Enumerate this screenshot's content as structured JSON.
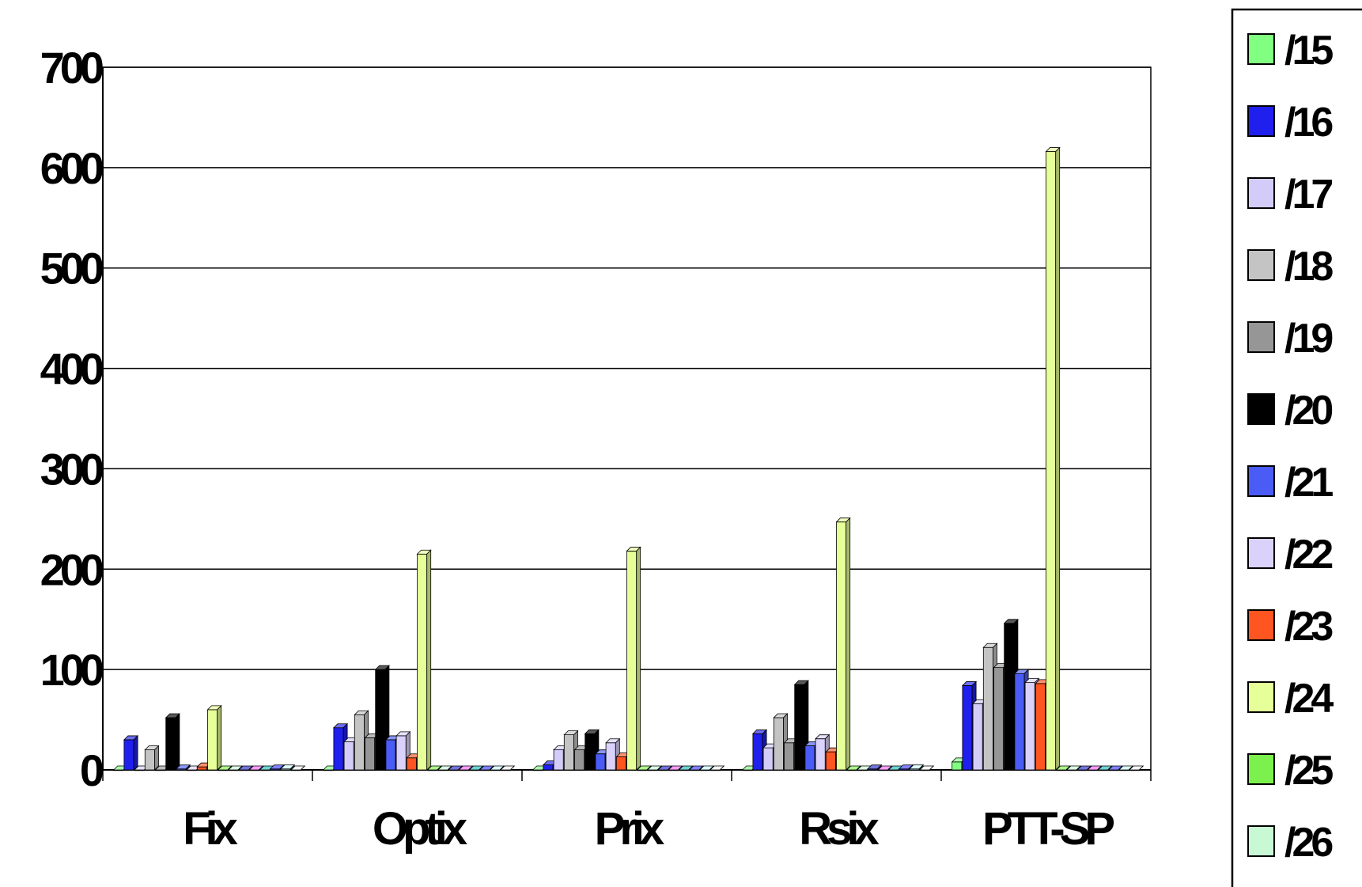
{
  "chart_data": {
    "type": "bar",
    "title": "",
    "xlabel": "",
    "ylabel": "",
    "ylim": [
      0,
      700
    ],
    "yticks": [
      "0",
      "100",
      "200",
      "300",
      "400",
      "500",
      "600",
      "700"
    ],
    "grid": true,
    "legend_position": "right",
    "categories": [
      "Fix",
      "Optix",
      "Prix",
      "Rsix",
      "PTT-SP"
    ],
    "series": [
      {
        "name": "/15",
        "color": "#80ff80",
        "values": [
          0,
          0,
          0,
          0,
          8
        ]
      },
      {
        "name": "/16",
        "color": "#2020ee",
        "values": [
          30,
          42,
          5,
          36,
          84
        ]
      },
      {
        "name": "/17",
        "color": "#d4ccf8",
        "values": [
          0,
          28,
          20,
          22,
          66
        ]
      },
      {
        "name": "/18",
        "color": "#c4c4c4",
        "values": [
          20,
          55,
          35,
          52,
          122
        ]
      },
      {
        "name": "/19",
        "color": "#969696",
        "values": [
          0,
          32,
          20,
          27,
          102
        ]
      },
      {
        "name": "/20",
        "color": "#000000",
        "values": [
          52,
          100,
          36,
          85,
          146
        ]
      },
      {
        "name": "/21",
        "color": "#4a5cf5",
        "values": [
          1,
          30,
          16,
          24,
          96
        ]
      },
      {
        "name": "/22",
        "color": "#dad2fa",
        "values": [
          0,
          34,
          27,
          31,
          87
        ]
      },
      {
        "name": "/23",
        "color": "#ff5520",
        "values": [
          3,
          12,
          13,
          18,
          86
        ]
      },
      {
        "name": "/24",
        "color": "#e6ff99",
        "values": [
          60,
          215,
          218,
          247,
          616
        ]
      },
      {
        "name": "/25",
        "color": "#7cf04c",
        "values": [
          0,
          0,
          0,
          0,
          0
        ]
      },
      {
        "name": "/26",
        "color": "#c8f8d4",
        "values": [
          0,
          0,
          0,
          0,
          0
        ]
      },
      {
        "name": "",
        "color": "#2828c8",
        "values": [
          0,
          0,
          0,
          1,
          0
        ]
      },
      {
        "name": "",
        "color": "#ff66ff",
        "values": [
          0,
          0,
          0,
          0,
          0
        ]
      },
      {
        "name": "",
        "color": "#20b8b8",
        "values": [
          0,
          0,
          0,
          0,
          0
        ]
      },
      {
        "name": "",
        "color": "#3c3cff",
        "values": [
          1,
          0,
          0,
          1,
          0
        ]
      },
      {
        "name": "",
        "color": "#c8fcff",
        "values": [
          1,
          0,
          0,
          1,
          0
        ]
      },
      {
        "name": "",
        "color": "#f0f0f0",
        "values": [
          0,
          0,
          0,
          0,
          0
        ]
      }
    ]
  }
}
